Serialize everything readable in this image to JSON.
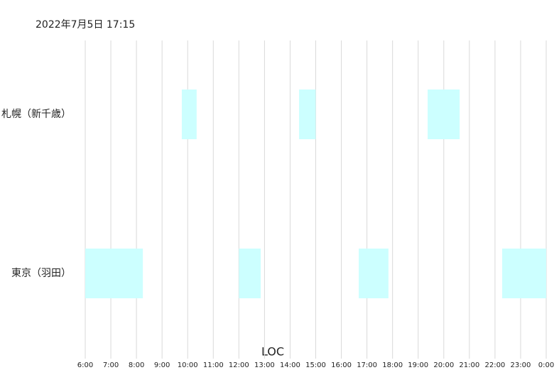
{
  "chart_data": {
    "type": "timeline",
    "title": "2022年7月5日 17:15",
    "xlabel": "LOC",
    "color": "#ccffff",
    "grid": true,
    "xlim": [
      6,
      24
    ],
    "xticks": [
      {
        "value": 6,
        "label": "6:00"
      },
      {
        "value": 7,
        "label": "7:00"
      },
      {
        "value": 8,
        "label": "8:00"
      },
      {
        "value": 9,
        "label": "9:00"
      },
      {
        "value": 10,
        "label": "10:00"
      },
      {
        "value": 11,
        "label": "11:00"
      },
      {
        "value": 12,
        "label": "12:00"
      },
      {
        "value": 13,
        "label": "13:00"
      },
      {
        "value": 14,
        "label": "14:00"
      },
      {
        "value": 15,
        "label": "15:00"
      },
      {
        "value": 16,
        "label": "16:00"
      },
      {
        "value": 17,
        "label": "17:00"
      },
      {
        "value": 18,
        "label": "18:00"
      },
      {
        "value": 19,
        "label": "19:00"
      },
      {
        "value": 20,
        "label": "20:00"
      },
      {
        "value": 21,
        "label": "21:00"
      },
      {
        "value": 22,
        "label": "22:00"
      },
      {
        "value": 23,
        "label": "23:00"
      },
      {
        "value": 24,
        "label": "0:00"
      }
    ],
    "rows": [
      {
        "label": "札幌（新千歳）",
        "intervals": [
          [
            9.77,
            10.35
          ],
          [
            14.35,
            15.0
          ],
          [
            19.37,
            20.62
          ]
        ]
      },
      {
        "label": "東京（羽田）",
        "intervals": [
          [
            6,
            8.25
          ],
          [
            12.0,
            12.85
          ],
          [
            16.68,
            17.84
          ],
          [
            22.28,
            24
          ]
        ]
      }
    ]
  }
}
